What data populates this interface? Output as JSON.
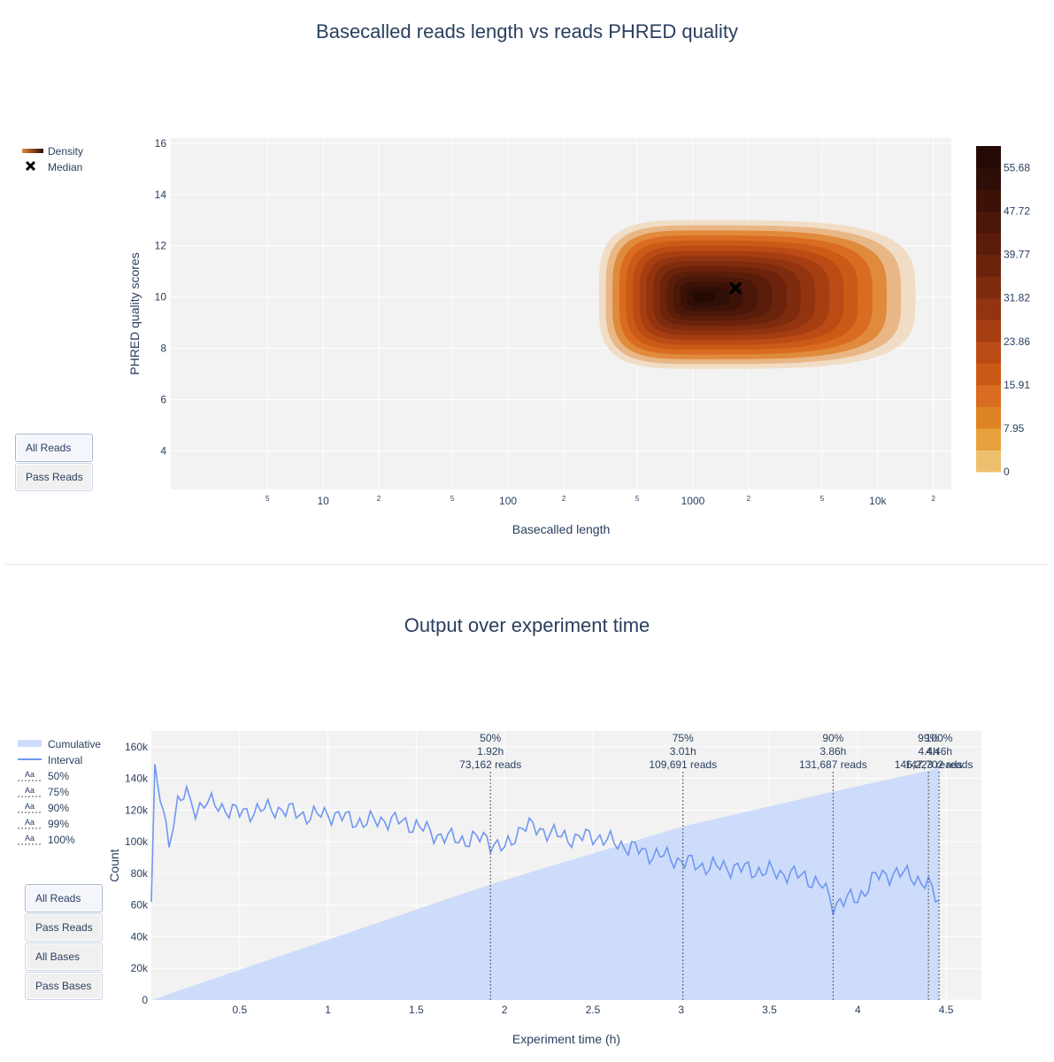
{
  "charts": {
    "density": {
      "title": "Basecalled reads length vs reads PHRED quality",
      "xlabel": "Basecalled length",
      "ylabel": "PHRED quality scores",
      "legend": [
        "Density",
        "Median"
      ],
      "buttons": [
        "All Reads",
        "Pass Reads"
      ],
      "colorbar_ticks": [
        "55.68",
        "47.72",
        "39.77",
        "31.82",
        "23.86",
        "15.91",
        "7.95",
        "0"
      ]
    },
    "output": {
      "title": "Output over experiment time",
      "xlabel": "Experiment time (h)",
      "ylabel": "Count",
      "legend": [
        "Cumulative",
        "Interval",
        "50%",
        "75%",
        "90%",
        "99%",
        "100%"
      ],
      "buttons": [
        "All Reads",
        "Pass Reads",
        "All Bases",
        "Pass Bases"
      ]
    }
  },
  "chart_data": [
    {
      "type": "heatmap",
      "title": "Basecalled reads length vs reads PHRED quality",
      "xlabel": "Basecalled length",
      "ylabel": "PHRED quality scores",
      "x_scale": "log",
      "xlim": [
        1.5,
        25000
      ],
      "ylim": [
        2.5,
        16.2
      ],
      "x_major_ticks": [
        10,
        100,
        1000,
        10000
      ],
      "x_major_tick_labels": [
        "10",
        "100",
        "1000",
        "10k"
      ],
      "x_minor_ticks": [
        5,
        20,
        50,
        200,
        500,
        2000,
        5000,
        20000
      ],
      "x_minor_tick_labels": [
        "5",
        "2",
        "5",
        "2",
        "5",
        "2",
        "5",
        "2"
      ],
      "y_ticks": [
        4,
        6,
        8,
        10,
        12,
        14,
        16
      ],
      "colorbar": {
        "min": 0,
        "max": 59.66,
        "tick_values": [
          55.68,
          47.72,
          39.77,
          31.82,
          23.86,
          15.91,
          7.95,
          0
        ],
        "colorscale": "Oranges to dark brown"
      },
      "density_peak": {
        "x": 1100,
        "y": 10.0
      },
      "outer_contour_extent": {
        "x": [
          310,
          16000
        ],
        "y": [
          7.2,
          13.0
        ]
      },
      "median": {
        "x": 1700,
        "y": 10.35
      },
      "legend": [
        {
          "name": "Density",
          "symbol": "line"
        },
        {
          "name": "Median",
          "symbol": "x"
        }
      ],
      "legend_placement": "top-left",
      "grid": true,
      "buttons": [
        "All Reads",
        "Pass Reads"
      ],
      "active_button": "All Reads"
    },
    {
      "type": "area",
      "title": "Output over experiment time",
      "xlabel": "Experiment time (h)",
      "ylabel": "Count",
      "xlim": [
        0,
        4.7
      ],
      "ylim": [
        0,
        170000
      ],
      "x_ticks": [
        0.5,
        1,
        1.5,
        2,
        2.5,
        3,
        3.5,
        4,
        4.5
      ],
      "y_ticks": [
        0,
        20000,
        40000,
        60000,
        80000,
        100000,
        120000,
        140000,
        160000
      ],
      "y_tick_labels": [
        "0",
        "20k",
        "40k",
        "60k",
        "80k",
        "100k",
        "120k",
        "140k",
        "160k"
      ],
      "series": [
        {
          "name": "Cumulative",
          "style": "filled area",
          "x": [
            0,
            1.92,
            3.01,
            3.86,
            4.46,
            4.46
          ],
          "y": [
            0,
            73162,
            109691,
            131687,
            146500,
            147000
          ]
        },
        {
          "name": "Interval",
          "style": "line",
          "x": [
            0,
            0.02,
            0.05,
            0.1,
            0.15,
            0.2,
            0.25,
            0.3,
            0.4,
            0.5,
            0.6,
            0.7,
            0.8,
            0.9,
            1.0,
            1.1,
            1.2,
            1.3,
            1.4,
            1.5,
            1.6,
            1.7,
            1.8,
            1.9,
            1.92,
            2.0,
            2.1,
            2.2,
            2.3,
            2.4,
            2.5,
            2.6,
            2.7,
            2.8,
            2.9,
            3.0,
            3.1,
            3.2,
            3.3,
            3.4,
            3.5,
            3.6,
            3.7,
            3.8,
            3.86,
            3.9,
            4.0,
            4.1,
            4.2,
            4.3,
            4.4,
            4.46
          ],
          "y": [
            62000,
            143000,
            128000,
            100000,
            125000,
            130000,
            120000,
            125000,
            122000,
            118000,
            120000,
            121000,
            119000,
            116000,
            118000,
            115000,
            112000,
            114000,
            113000,
            110000,
            105000,
            102000,
            101000,
            103000,
            100000,
            95000,
            110000,
            108000,
            104000,
            102000,
            104000,
            100000,
            97000,
            93000,
            91000,
            88000,
            85000,
            84000,
            84000,
            82000,
            81000,
            80000,
            78000,
            72000,
            60000,
            63000,
            64000,
            78000,
            80000,
            79000,
            72000,
            63000
          ]
        }
      ],
      "threshold_lines": [
        {
          "label": "50%",
          "time": "1.92h",
          "reads": "73,162 reads",
          "x": 1.92
        },
        {
          "label": "75%",
          "time": "3.01h",
          "reads": "109,691 reads",
          "x": 3.01
        },
        {
          "label": "90%",
          "time": "3.86h",
          "reads": "131,687 reads",
          "x": 3.86
        },
        {
          "label": "99%",
          "time": "4.4h",
          "reads": "146,223 reads",
          "x": 4.4
        },
        {
          "label": "100%",
          "time": "4.46h",
          "reads": "147,702 reads",
          "x": 4.46
        }
      ],
      "legend_placement": "top-left",
      "grid": true,
      "buttons": [
        "All Reads",
        "Pass Reads",
        "All Bases",
        "Pass Bases"
      ],
      "active_button": "All Reads"
    }
  ],
  "colors": {
    "cumulative_fill": "#cddcfa",
    "interval_line": "#6f97f1",
    "plot_bg": "#f2f2f2",
    "grid": "#ffffff",
    "text": "#2a3f5f",
    "median_marker": "#000000"
  }
}
